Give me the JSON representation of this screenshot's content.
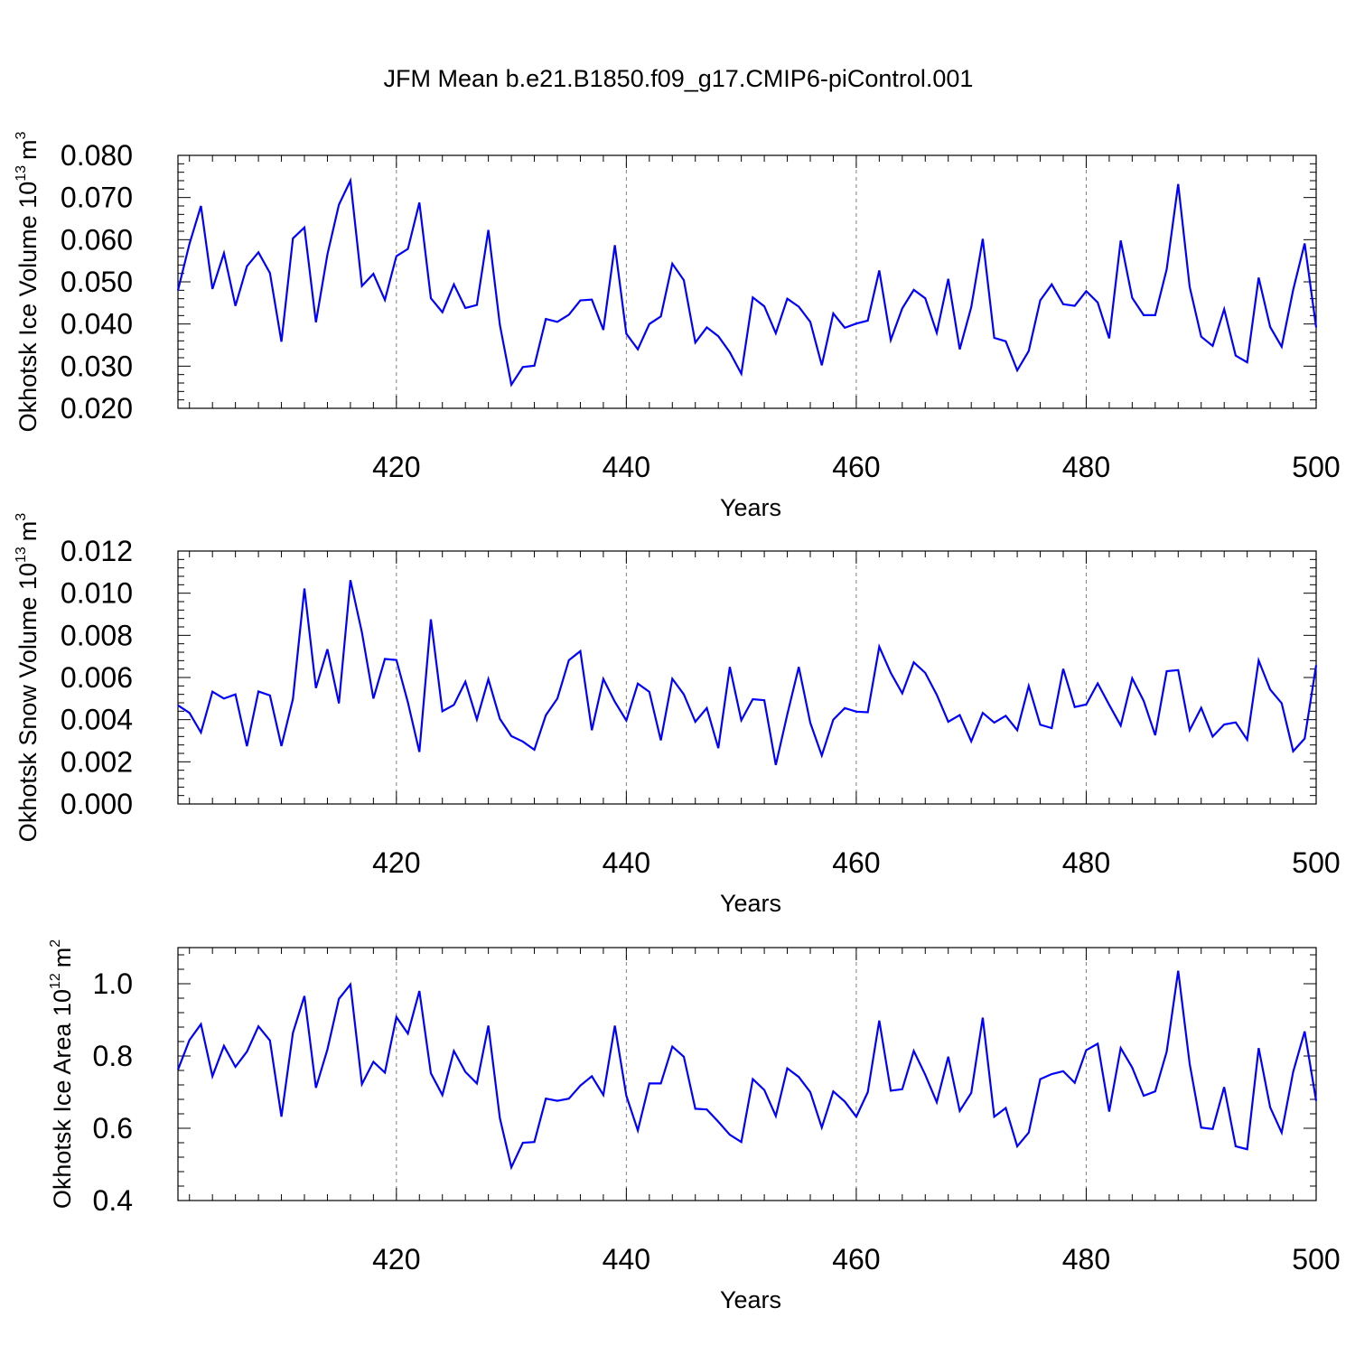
{
  "title": "JFM Mean b.e21.B1850.f09_g17.CMIP6-piControl.001",
  "colors": {
    "line": "#0000ff",
    "axis": "#000000",
    "grid": "#808080"
  },
  "chart_data": [
    {
      "type": "line",
      "ylabel_main": "Okhotsk Ice Volume 10",
      "ylabel_exp": "13",
      "ylabel_unit": "m",
      "ylabel_unit_exp": "3",
      "xlabel": "Years",
      "xlim": [
        401,
        500
      ],
      "ylim": [
        0.02,
        0.08
      ],
      "xticks": [
        420,
        440,
        460,
        480,
        500
      ],
      "xtick_labels": [
        "420",
        "440",
        "460",
        "480",
        "500"
      ],
      "yticks": [
        0.02,
        0.03,
        0.04,
        0.05,
        0.06,
        0.07,
        0.08
      ],
      "ytick_labels": [
        "0.020",
        "0.030",
        "0.040",
        "0.050",
        "0.060",
        "0.070",
        "0.080"
      ],
      "series": [
        {
          "name": "Okhotsk Ice Volume",
          "x_start": 401,
          "values": [
            0.048,
            0.059,
            0.068,
            0.0483,
            0.0568,
            0.0443,
            0.0537,
            0.057,
            0.0521,
            0.0358,
            0.0603,
            0.0629,
            0.0404,
            0.0565,
            0.0683,
            0.074,
            0.049,
            0.0519,
            0.0457,
            0.0561,
            0.0578,
            0.0688,
            0.0461,
            0.0428,
            0.0494,
            0.0438,
            0.0445,
            0.0623,
            0.0398,
            0.0256,
            0.0298,
            0.0301,
            0.0412,
            0.0405,
            0.0422,
            0.0456,
            0.0458,
            0.0386,
            0.0587,
            0.0377,
            0.034,
            0.04,
            0.0418,
            0.0543,
            0.0504,
            0.0356,
            0.0392,
            0.0371,
            0.0333,
            0.0282,
            0.0463,
            0.0442,
            0.0378,
            0.046,
            0.0441,
            0.0405,
            0.0302,
            0.0425,
            0.0391,
            0.0401,
            0.0408,
            0.0527,
            0.0362,
            0.0437,
            0.0481,
            0.0461,
            0.0379,
            0.0507,
            0.034,
            0.044,
            0.0602,
            0.0367,
            0.0359,
            0.029,
            0.0336,
            0.0456,
            0.0494,
            0.0447,
            0.0443,
            0.0478,
            0.0451,
            0.0366,
            0.0598,
            0.0462,
            0.0421,
            0.0421,
            0.053,
            0.0732,
            0.0488,
            0.037,
            0.0348,
            0.0435,
            0.0325,
            0.0309,
            0.051,
            0.0393,
            0.0346,
            0.0481,
            0.0591,
            0.0392
          ]
        }
      ]
    },
    {
      "type": "line",
      "ylabel_main": "Okhotsk Snow Volume 10",
      "ylabel_exp": "13",
      "ylabel_unit": "m",
      "ylabel_unit_exp": "3",
      "xlabel": "Years",
      "xlim": [
        401,
        500
      ],
      "ylim": [
        0.0,
        0.012
      ],
      "xticks": [
        420,
        440,
        460,
        480,
        500
      ],
      "xtick_labels": [
        "420",
        "440",
        "460",
        "480",
        "500"
      ],
      "yticks": [
        0.0,
        0.002,
        0.004,
        0.006,
        0.008,
        0.01,
        0.012
      ],
      "ytick_labels": [
        "0.000",
        "0.002",
        "0.004",
        "0.006",
        "0.008",
        "0.010",
        "0.012"
      ],
      "series": [
        {
          "name": "Okhotsk Snow Volume",
          "x_start": 401,
          "values": [
            0.00468,
            0.00432,
            0.00339,
            0.00533,
            0.005,
            0.0052,
            0.00274,
            0.00534,
            0.00515,
            0.00275,
            0.00498,
            0.01022,
            0.0055,
            0.00734,
            0.00477,
            0.01062,
            0.00814,
            0.005,
            0.00688,
            0.00683,
            0.00482,
            0.00247,
            0.00876,
            0.0044,
            0.0047,
            0.0058,
            0.00401,
            0.00592,
            0.00404,
            0.00322,
            0.00296,
            0.00257,
            0.00421,
            0.005,
            0.00682,
            0.00725,
            0.0035,
            0.00593,
            0.00485,
            0.00396,
            0.00571,
            0.00532,
            0.00302,
            0.00594,
            0.0052,
            0.0039,
            0.00455,
            0.00265,
            0.0065,
            0.00397,
            0.00497,
            0.00492,
            0.00185,
            0.00425,
            0.0065,
            0.00385,
            0.0023,
            0.004,
            0.00455,
            0.00438,
            0.00435,
            0.00746,
            0.00622,
            0.00525,
            0.00672,
            0.00622,
            0.00518,
            0.0039,
            0.00422,
            0.00297,
            0.00432,
            0.00386,
            0.00418,
            0.0035,
            0.0056,
            0.00376,
            0.0036,
            0.00641,
            0.0046,
            0.00472,
            0.00572,
            0.0047,
            0.00372,
            0.00596,
            0.00489,
            0.00326,
            0.0063,
            0.00635,
            0.0035,
            0.00456,
            0.0032,
            0.00377,
            0.00387,
            0.00305,
            0.00681,
            0.00543,
            0.00478,
            0.0025,
            0.0031,
            0.00658
          ]
        }
      ]
    },
    {
      "type": "line",
      "ylabel_main": "Okhotsk Ice Area 10",
      "ylabel_exp": "12",
      "ylabel_unit": "m",
      "ylabel_unit_exp": "2",
      "xlabel": "Years",
      "xlim": [
        401,
        500
      ],
      "ylim": [
        0.4,
        1.1
      ],
      "xticks": [
        420,
        440,
        460,
        480,
        500
      ],
      "xtick_labels": [
        "420",
        "440",
        "460",
        "480",
        "500"
      ],
      "yticks": [
        0.4,
        0.6,
        0.8,
        1.0
      ],
      "ytick_labels": [
        "0.4",
        "0.6",
        "0.8",
        "1.0"
      ],
      "series": [
        {
          "name": "Okhotsk Ice Area",
          "x_start": 401,
          "values": [
            0.762,
            0.844,
            0.888,
            0.744,
            0.828,
            0.77,
            0.812,
            0.882,
            0.843,
            0.632,
            0.864,
            0.966,
            0.712,
            0.818,
            0.958,
            0.998,
            0.722,
            0.784,
            0.754,
            0.908,
            0.862,
            0.98,
            0.752,
            0.692,
            0.814,
            0.756,
            0.724,
            0.884,
            0.628,
            0.492,
            0.56,
            0.562,
            0.682,
            0.676,
            0.682,
            0.718,
            0.744,
            0.692,
            0.884,
            0.69,
            0.594,
            0.724,
            0.724,
            0.826,
            0.798,
            0.654,
            0.652,
            0.618,
            0.582,
            0.562,
            0.736,
            0.706,
            0.634,
            0.766,
            0.742,
            0.7,
            0.602,
            0.702,
            0.674,
            0.632,
            0.7,
            0.898,
            0.704,
            0.708,
            0.814,
            0.748,
            0.672,
            0.798,
            0.648,
            0.698,
            0.906,
            0.632,
            0.656,
            0.55,
            0.588,
            0.736,
            0.75,
            0.758,
            0.726,
            0.816,
            0.834,
            0.646,
            0.822,
            0.768,
            0.69,
            0.702,
            0.812,
            1.036,
            0.778,
            0.602,
            0.598,
            0.714,
            0.55,
            0.542,
            0.822,
            0.658,
            0.588,
            0.756,
            0.868,
            0.676
          ]
        }
      ]
    }
  ]
}
